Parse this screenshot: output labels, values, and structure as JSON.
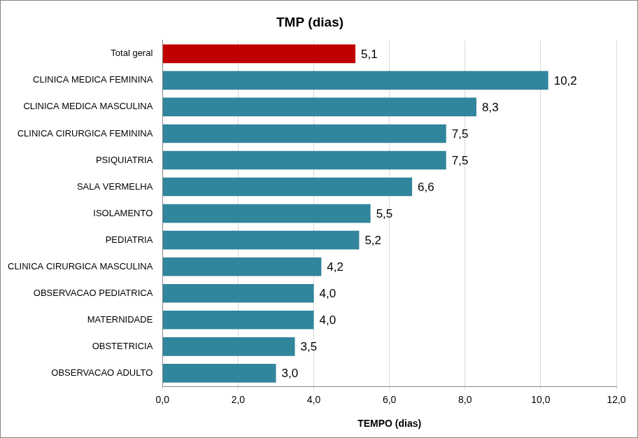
{
  "chart_data": {
    "type": "bar",
    "orientation": "horizontal",
    "title": "TMP (dias)",
    "x_label": "TEMPO (dias)",
    "categories": [
      "Total geral",
      "CLINICA MEDICA FEMININA",
      "CLINICA MEDICA MASCULINA",
      "CLINICA CIRURGICA FEMININA",
      "PSIQUIATRIA",
      "SALA VERMELHA",
      "ISOLAMENTO",
      "PEDIATRIA",
      "CLINICA CIRURGICA MASCULINA",
      "OBSERVACAO PEDIATRICA",
      "MATERNIDADE",
      "OBSTETRICIA",
      "OBSERVACAO ADULTO"
    ],
    "values": [
      5.1,
      10.2,
      8.3,
      7.5,
      7.5,
      6.6,
      5.5,
      5.2,
      4.2,
      4.0,
      4.0,
      3.5,
      3.0
    ],
    "value_labels": [
      "5,1",
      "10,2",
      "8,3",
      "7,5",
      "7,5",
      "6,6",
      "5,5",
      "5,2",
      "4,2",
      "4,0",
      "4,0",
      "3,5",
      "3,0"
    ],
    "colors": [
      "#c00000",
      "#31859c",
      "#31859c",
      "#31859c",
      "#31859c",
      "#31859c",
      "#31859c",
      "#31859c",
      "#31859c",
      "#31859c",
      "#31859c",
      "#31859c",
      "#31859c"
    ],
    "xlim": [
      0,
      12
    ],
    "xticks": [
      {
        "value": 0,
        "label": "0,0"
      },
      {
        "value": 2,
        "label": "2,0"
      },
      {
        "value": 4,
        "label": "4,0"
      },
      {
        "value": 6,
        "label": "6,0"
      },
      {
        "value": 8,
        "label": "8,0"
      },
      {
        "value": 10,
        "label": "10,0"
      },
      {
        "value": 12,
        "label": "12,0"
      }
    ],
    "grid": true,
    "data_labels": true
  }
}
